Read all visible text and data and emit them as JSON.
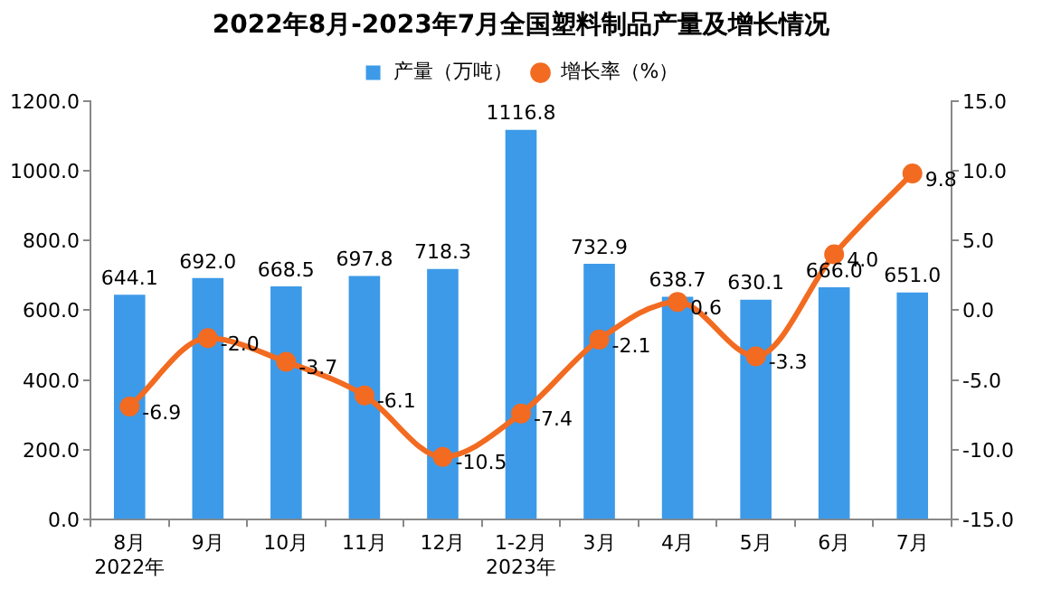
{
  "chart_data": {
    "type": "bar",
    "title": "2022年8月-2023年7月全国塑料制品产量及增长情况",
    "categories": [
      "8月\n2022年",
      "9月",
      "10月",
      "11月",
      "12月",
      "1-2月\n2023年",
      "3月",
      "4月",
      "5月",
      "6月",
      "7月"
    ],
    "series": [
      {
        "name": "产量（万吨）",
        "color": "#3d9ae8",
        "values": [
          644.1,
          692.0,
          668.5,
          697.8,
          718.3,
          1116.8,
          732.9,
          638.7,
          630.1,
          666.0,
          651.0
        ],
        "value_labels": [
          "644.1",
          "692.0",
          "668.5",
          "697.8",
          "718.3",
          "1116.8",
          "732.9",
          "638.7",
          "630.1",
          "666.0",
          "651.0"
        ]
      },
      {
        "name": "增长率（%）",
        "type": "line",
        "axis": "y2",
        "color": "#f26b21",
        "marker": "circle",
        "values": [
          -6.9,
          -2.0,
          -3.7,
          -6.1,
          -10.5,
          -7.4,
          -2.1,
          0.6,
          -3.3,
          4.0,
          9.8
        ],
        "value_labels": [
          "-6.9",
          "-2.0",
          "-3.7",
          "-6.1",
          "-10.5",
          "-7.4",
          "-2.1",
          "0.6",
          "-3.3",
          "4.0",
          "9.8"
        ]
      }
    ],
    "ylim": [
      0,
      1200
    ],
    "yticks": [
      {
        "value": 0,
        "label": "0.0"
      },
      {
        "value": 200,
        "label": "200.0"
      },
      {
        "value": 400,
        "label": "400.0"
      },
      {
        "value": 600,
        "label": "600.0"
      },
      {
        "value": 800,
        "label": "800.0"
      },
      {
        "value": 1000,
        "label": "1000.0"
      },
      {
        "value": 1200,
        "label": "1200.0"
      }
    ],
    "y2lim": [
      -15,
      15
    ],
    "y2ticks": [
      {
        "value": -15,
        "label": "-15.0"
      },
      {
        "value": -10,
        "label": "-10.0"
      },
      {
        "value": -5,
        "label": "-5.0"
      },
      {
        "value": 0,
        "label": "0.0"
      },
      {
        "value": 5,
        "label": "5.0"
      },
      {
        "value": 10,
        "label": "10.0"
      },
      {
        "value": 15,
        "label": "15.0"
      }
    ],
    "grid": false,
    "legend": "top"
  }
}
